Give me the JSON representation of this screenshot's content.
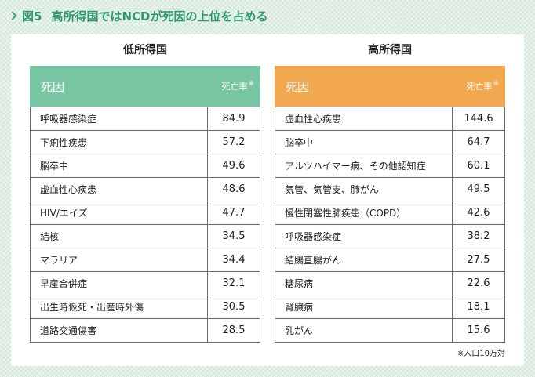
{
  "figure": {
    "label": "図5",
    "title": "高所得国ではNCDが死因の上位を占める",
    "footnote": "※人口10万対"
  },
  "chart_data": {
    "type": "table",
    "tables": [
      {
        "title": "低所得国",
        "header_color": "#78c6a3",
        "columns": [
          "死因",
          "死亡率"
        ],
        "rate_note_mark": "※",
        "rows": [
          {
            "cause": "呼吸器感染症",
            "rate": "84.9"
          },
          {
            "cause": "下痢性疾患",
            "rate": "57.2"
          },
          {
            "cause": "脳卒中",
            "rate": "49.6"
          },
          {
            "cause": "虚血性心疾患",
            "rate": "48.6"
          },
          {
            "cause": "HIV/エイズ",
            "rate": "47.7"
          },
          {
            "cause": "結核",
            "rate": "34.5"
          },
          {
            "cause": "マラリア",
            "rate": "34.4"
          },
          {
            "cause": "早産合併症",
            "rate": "32.1"
          },
          {
            "cause": "出生時仮死・出産時外傷",
            "rate": "30.5"
          },
          {
            "cause": "道路交通傷害",
            "rate": "28.5"
          }
        ]
      },
      {
        "title": "高所得国",
        "header_color": "#f2a84e",
        "columns": [
          "死因",
          "死亡率"
        ],
        "rate_note_mark": "※",
        "rows": [
          {
            "cause": "虚血性心疾患",
            "rate": "144.6"
          },
          {
            "cause": "脳卒中",
            "rate": "64.7"
          },
          {
            "cause": "アルツハイマー病、その他認知症",
            "rate": "60.1"
          },
          {
            "cause": "気管、気管支、肺がん",
            "rate": "49.5"
          },
          {
            "cause": "慢性閉塞性肺疾患（COPD）",
            "rate": "42.6"
          },
          {
            "cause": "呼吸器感染症",
            "rate": "38.2"
          },
          {
            "cause": "結腸直腸がん",
            "rate": "27.5"
          },
          {
            "cause": "糖尿病",
            "rate": "22.6"
          },
          {
            "cause": "腎臓病",
            "rate": "18.1"
          },
          {
            "cause": "乳がん",
            "rate": "15.6"
          }
        ]
      }
    ]
  }
}
